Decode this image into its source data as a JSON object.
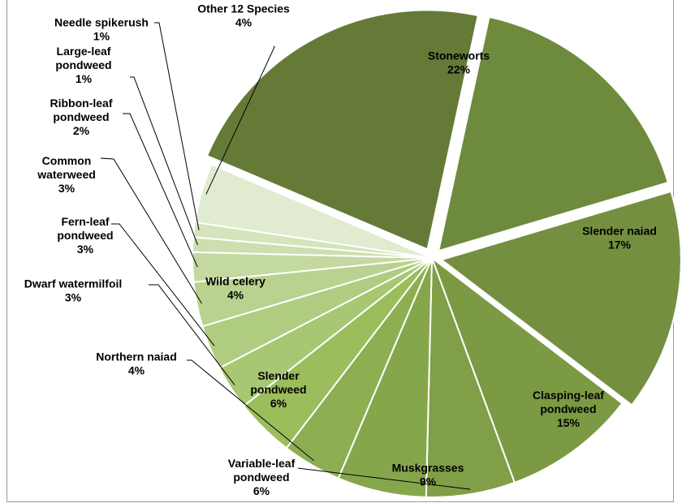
{
  "chart_data": {
    "type": "pie",
    "title": "",
    "unit": "%",
    "slices": [
      {
        "label": "Stoneworts",
        "value": 22,
        "color": "#667a38",
        "label_inside": true,
        "exploded": true
      },
      {
        "label": "Slender naiad",
        "value": 17,
        "color": "#6e8a3c",
        "label_inside": true,
        "exploded": true
      },
      {
        "label": "Clasping-leaf pondweed",
        "value": 15,
        "color": "#758f40",
        "label_inside": true,
        "exploded": true
      },
      {
        "label": "Muskgrasses",
        "value": 9,
        "color": "#7b9a43",
        "label_inside": true,
        "exploded": false
      },
      {
        "label": "Variable-leaf pondweed",
        "value": 6,
        "color": "#809f46",
        "label_inside": false,
        "exploded": false
      },
      {
        "label": "Slender pondweed",
        "value": 6,
        "color": "#86a64b",
        "label_inside": true,
        "exploded": false
      },
      {
        "label": "Northern naiad",
        "value": 4,
        "color": "#8eae52",
        "label_inside": false,
        "exploded": false
      },
      {
        "label": "Wild celery",
        "value": 4,
        "color": "#9bbd5c",
        "label_inside": true,
        "exploded": false
      },
      {
        "label": "Dwarf watermilfoil",
        "value": 3,
        "color": "#a7c772",
        "label_inside": false,
        "exploded": false
      },
      {
        "label": "Fern-leaf pondweed",
        "value": 3,
        "color": "#b0cc80",
        "label_inside": false,
        "exploded": false
      },
      {
        "label": "Common waterweed",
        "value": 3,
        "color": "#b9d28f",
        "label_inside": false,
        "exploded": false
      },
      {
        "label": "Ribbon-leaf pondweed",
        "value": 2,
        "color": "#c3d9a0",
        "label_inside": false,
        "exploded": false
      },
      {
        "label": "Large-leaf pondweed",
        "value": 1,
        "color": "#ccdfae",
        "label_inside": false,
        "exploded": false
      },
      {
        "label": "Needle spikerush",
        "value": 1,
        "color": "#d4e4bb",
        "label_inside": false,
        "exploded": false
      },
      {
        "label": "Other 12 Species",
        "value": 4,
        "color": "#e0ebd0",
        "label_inside": false,
        "exploded": false
      }
    ]
  }
}
